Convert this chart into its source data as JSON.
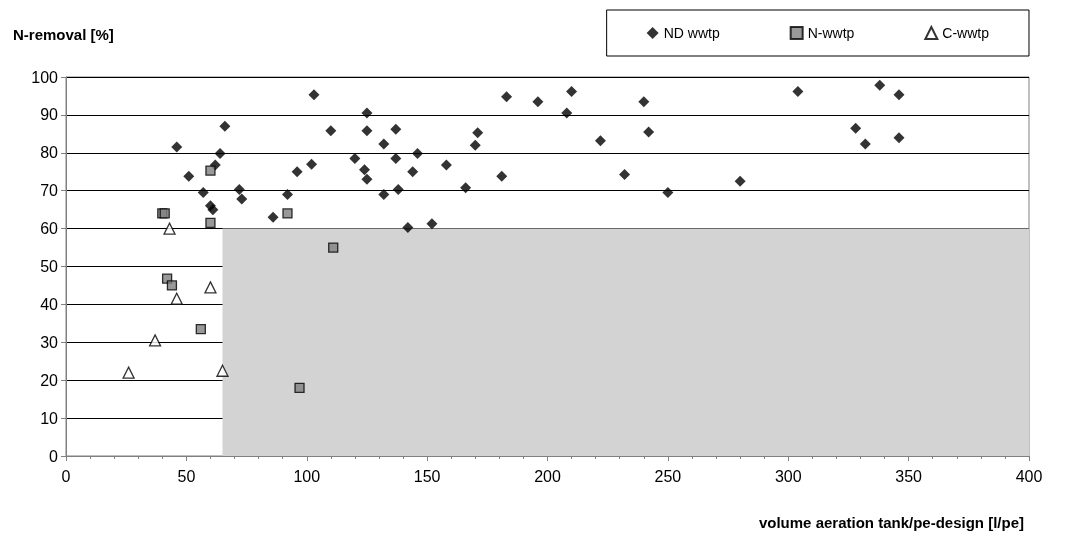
{
  "chart_data": {
    "type": "scatter",
    "xlabel": "volume aeration tank/pe-design [l/pe]",
    "ylabel": "N-removal [%]",
    "xlim": [
      0,
      400
    ],
    "xticks": [
      0,
      50,
      100,
      150,
      200,
      250,
      300,
      350,
      400
    ],
    "ylim": [
      0,
      100
    ],
    "yticks": [
      0,
      10,
      20,
      30,
      40,
      50,
      60,
      70,
      80,
      90,
      100
    ],
    "grid": "y",
    "legend": "top right",
    "series": [
      {
        "type": "area",
        "color": "#d3d3d3",
        "x": [
          65,
          400
        ],
        "values": [
          60,
          60
        ]
      },
      {
        "name": "ND wwtp",
        "color": "#000000",
        "marker": "diamond",
        "x": [
          46,
          51,
          57,
          60,
          61,
          62,
          64,
          66,
          72,
          73,
          86,
          92,
          96,
          102,
          103,
          110,
          120,
          124,
          125,
          125,
          125,
          132,
          132,
          137,
          137,
          138,
          142,
          144,
          146,
          152,
          158,
          166,
          170,
          171,
          181,
          183,
          196,
          208,
          210,
          222,
          232,
          240,
          242,
          250,
          280,
          304,
          328,
          332,
          338,
          346,
          346
        ],
        "values": [
          81.5,
          73.8,
          69.5,
          66,
          65,
          76.8,
          79.8,
          87,
          70.3,
          67.8,
          63,
          69,
          75,
          77,
          95.3,
          85.8,
          78.5,
          75.5,
          90.5,
          85.8,
          73,
          82.3,
          69,
          86.2,
          78.5,
          70.3,
          60.3,
          75,
          79.8,
          61.3,
          76.8,
          70.8,
          82,
          85.3,
          73.8,
          94.8,
          93.5,
          90.5,
          96.2,
          83.2,
          74.3,
          93.5,
          85.5,
          69.5,
          72.5,
          96.2,
          86.5,
          82.3,
          97.8,
          84,
          95.3
        ]
      },
      {
        "name": "N-wwtp",
        "color": "#808080",
        "marker": "square",
        "x": [
          40,
          41,
          42,
          44,
          56,
          60,
          60,
          92,
          111,
          97
        ],
        "values": [
          64,
          64,
          46.8,
          45,
          33.5,
          75.3,
          61.5,
          64,
          55,
          18
        ]
      },
      {
        "name": "C-wwtp",
        "color": "#ffffff",
        "marker": "triangle",
        "x": [
          26,
          37,
          43,
          46,
          60,
          65
        ],
        "values": [
          22,
          30.5,
          60,
          41.5,
          44.5,
          22.5
        ]
      }
    ]
  }
}
